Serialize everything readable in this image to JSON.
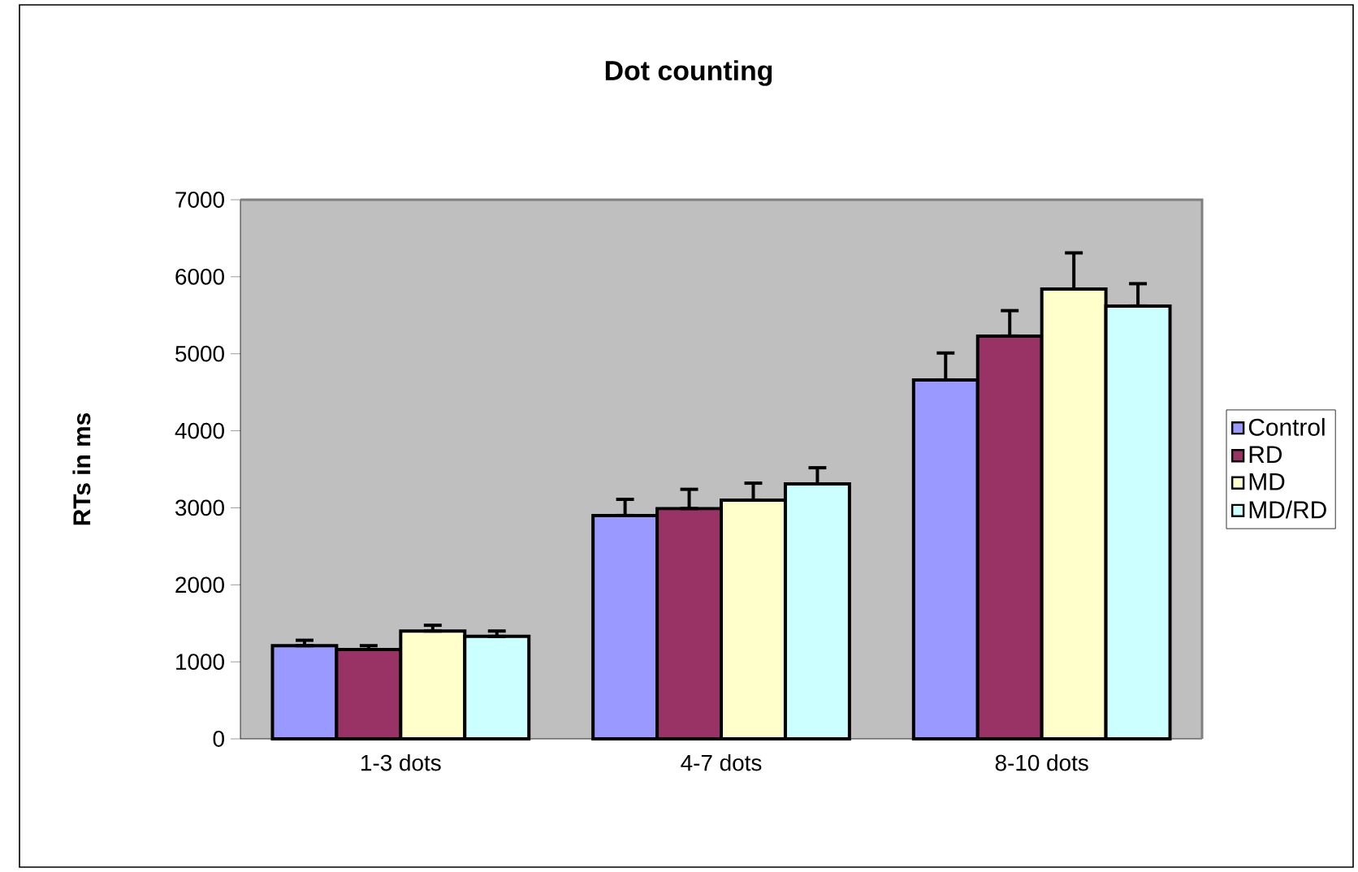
{
  "chart_data": {
    "type": "bar",
    "title": "Dot counting",
    "ylabel": "RTs in ms",
    "categories": [
      "1-3 dots",
      "4-7 dots",
      "8-10 dots"
    ],
    "series": [
      {
        "name": "Control",
        "color": "#9999ff",
        "values": [
          1210,
          2900,
          4660
        ],
        "errors": [
          [
            1210,
            1280
          ],
          [
            2900,
            3110
          ],
          [
            4660,
            5010
          ]
        ]
      },
      {
        "name": "RD",
        "color": "#993366",
        "values": [
          1160,
          2990,
          5230
        ],
        "errors": [
          [
            1160,
            1210
          ],
          [
            2990,
            3240
          ],
          [
            5230,
            5560
          ]
        ]
      },
      {
        "name": "MD",
        "color": "#ffffcc",
        "values": [
          1400,
          3100,
          5840
        ],
        "errors": [
          [
            1400,
            1475
          ],
          [
            3100,
            3320
          ],
          [
            5840,
            6310
          ]
        ]
      },
      {
        "name": "MD/RD",
        "color": "#ccffff",
        "values": [
          1330,
          3310,
          5620
        ],
        "errors": [
          [
            1330,
            1400
          ],
          [
            3310,
            3520
          ],
          [
            5620,
            5910
          ]
        ]
      }
    ],
    "ylim": [
      0,
      7000
    ],
    "yticks": [
      0,
      1000,
      2000,
      3000,
      4000,
      5000,
      6000,
      7000
    ],
    "grid": false,
    "legend": "right"
  }
}
